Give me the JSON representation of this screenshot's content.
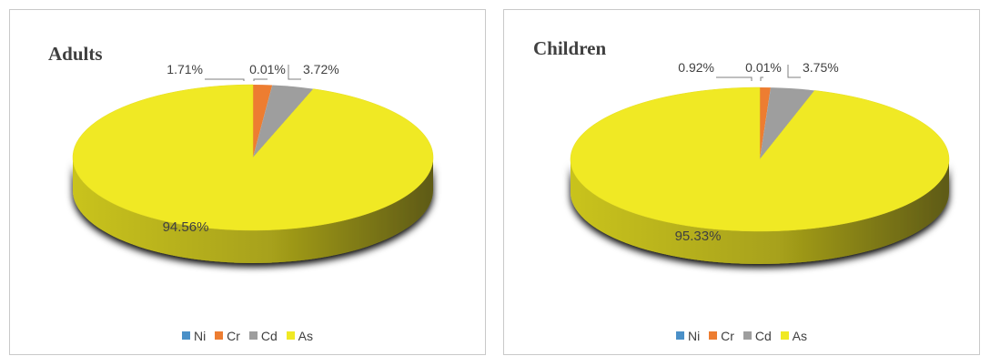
{
  "chart_data": [
    {
      "type": "pie",
      "title": "Adults",
      "categories": [
        "Ni",
        "Cr",
        "Cd",
        "As"
      ],
      "values": [
        0.01,
        1.71,
        3.72,
        94.56
      ],
      "data_labels": [
        "0.01%",
        "1.71%",
        "3.72%",
        "94.56%"
      ],
      "legend": "bottom"
    },
    {
      "type": "pie",
      "title": "Children",
      "categories": [
        "Ni",
        "Cr",
        "Cd",
        "As"
      ],
      "values": [
        0.01,
        0.92,
        3.75,
        95.33
      ],
      "data_labels": [
        "0.01%",
        "0.92%",
        "3.75%",
        "95.33%"
      ],
      "legend": "bottom"
    }
  ],
  "colors": {
    "Ni": "#4a90c8",
    "Cr": "#ed7d31",
    "Cd": "#9e9e9e",
    "As": "#f0e924",
    "As_side_light": "#c9c31a",
    "As_side_dark": "#5e5a12",
    "label_text": "#404040",
    "leader": "#7f7f7f"
  }
}
